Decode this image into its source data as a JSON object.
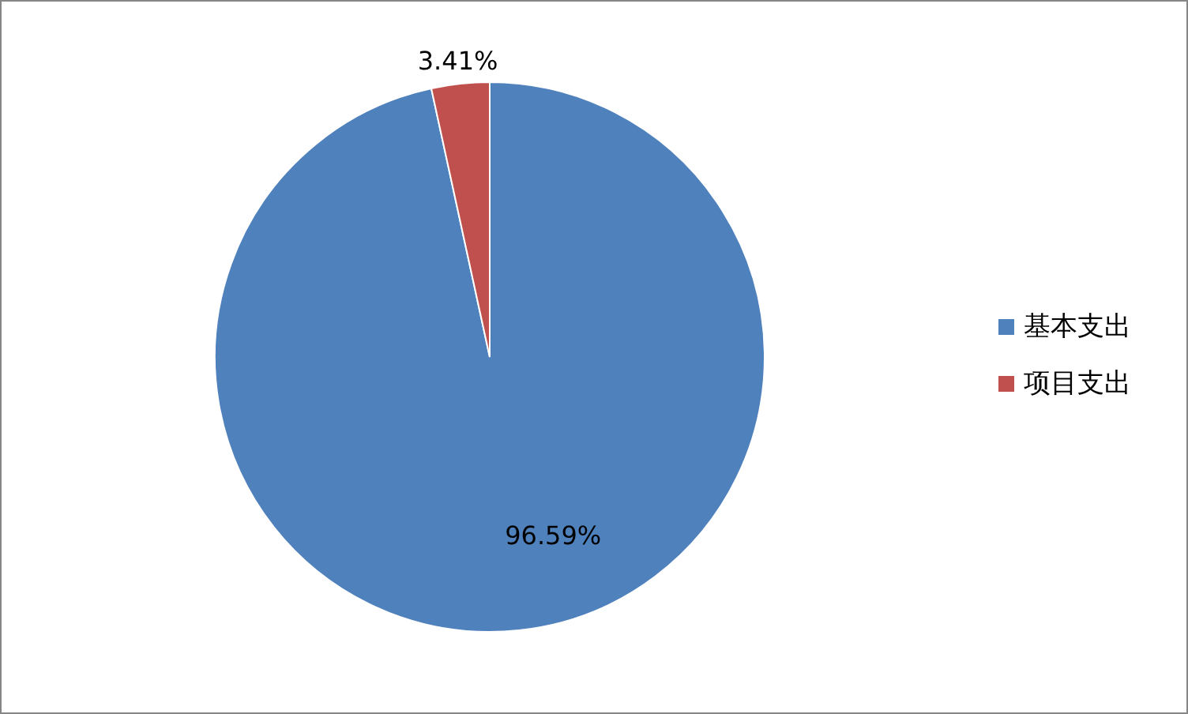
{
  "chart_data": {
    "type": "pie",
    "categories": [
      "基本支出",
      "项目支出"
    ],
    "values": [
      96.59,
      3.41
    ],
    "colors": [
      "#4f81bd",
      "#c0504d"
    ],
    "value_labels": [
      "96.59%",
      "3.41%"
    ],
    "legend": "right"
  }
}
